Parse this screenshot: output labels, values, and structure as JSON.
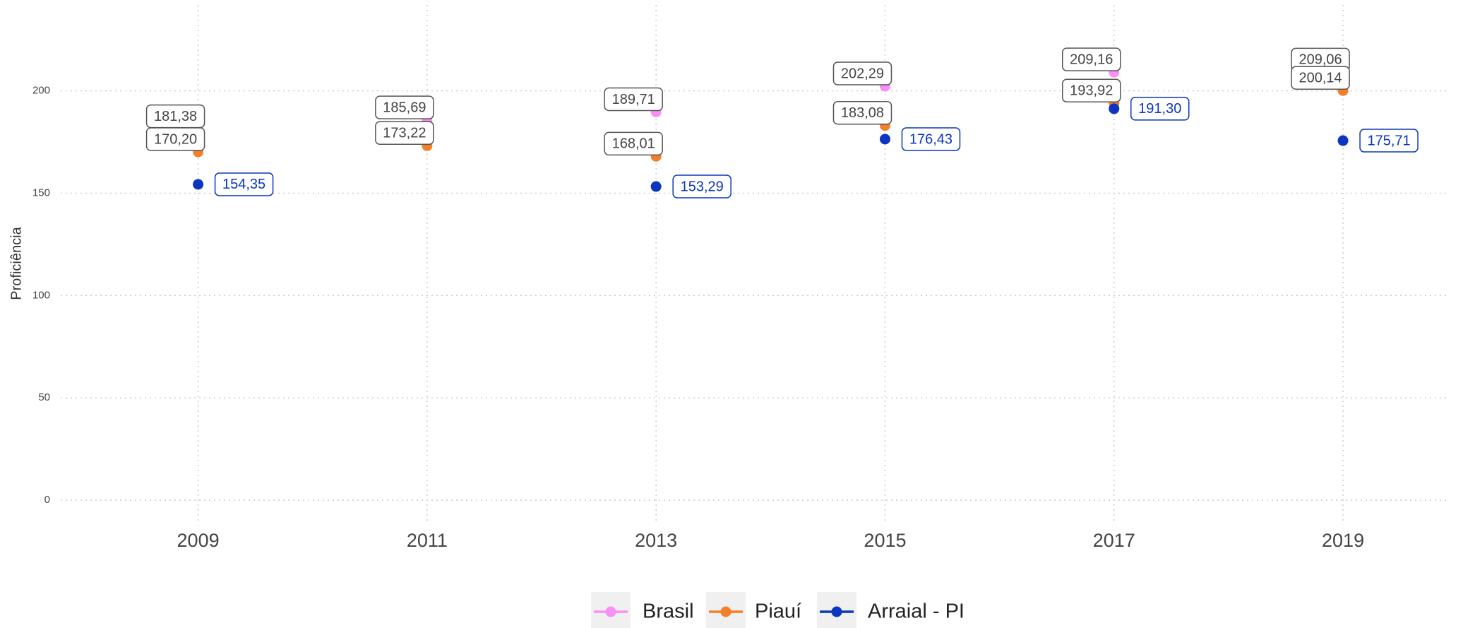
{
  "chart_data": {
    "type": "line",
    "y_label": "Proficiência",
    "xlim": [
      2007.8,
      2019.9
    ],
    "xticks": [
      2009,
      2011,
      2013,
      2015,
      2017,
      2019
    ],
    "ylim": [
      -11,
      242
    ],
    "yticks": [
      0,
      50,
      100,
      150,
      200
    ],
    "grid": true,
    "legend": "bottom",
    "series": [
      {
        "name": "Brasil",
        "color": "#f78ff7",
        "x": [
          2009,
          2011,
          2013,
          2015,
          2017,
          2019
        ],
        "values": [
          181.38,
          185.69,
          189.71,
          202.29,
          209.16,
          209.06
        ],
        "value_labels": [
          "181,38",
          "185,69",
          "189,71",
          "202,29",
          "209,16",
          "209,06"
        ]
      },
      {
        "name": "Piauí",
        "color": "#f47f2a",
        "x": [
          2009,
          2011,
          2013,
          2015,
          2017,
          2019
        ],
        "values": [
          170.2,
          173.22,
          168.01,
          183.08,
          193.92,
          200.14
        ],
        "value_labels": [
          "170,20",
          "173,22",
          "168,01",
          "183,08",
          "193,92",
          "200,14"
        ]
      },
      {
        "name": "Arraial - PI",
        "color": "#0b36bd",
        "x": [
          2009,
          2013,
          2015,
          2017,
          2019
        ],
        "values": [
          154.35,
          153.29,
          176.43,
          191.3,
          175.71
        ],
        "value_labels": [
          "154,35",
          "153,29",
          "176,43",
          "191,30",
          "175,71"
        ]
      }
    ]
  }
}
